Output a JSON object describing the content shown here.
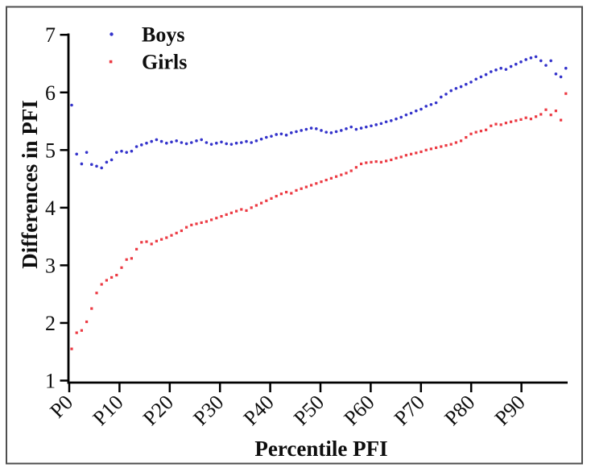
{
  "figure": {
    "background": "#ffffff",
    "border_color": "#4e4e4e"
  },
  "chart_data": {
    "type": "scatter",
    "title": "",
    "xlabel": "Percentile PFI",
    "ylabel": "Differences in PFI",
    "xlim": [
      0,
      100
    ],
    "ylim": [
      1,
      7
    ],
    "grid": false,
    "legend_position": "top-left-inside",
    "x_tick_labels": [
      "P0",
      "P10",
      "P20",
      "P30",
      "P40",
      "P50",
      "P60",
      "P70",
      "P80",
      "P90"
    ],
    "x_tick_values": [
      0,
      10,
      20,
      30,
      40,
      50,
      60,
      70,
      80,
      90
    ],
    "y_tick_labels": [
      "1",
      "2",
      "3",
      "4",
      "5",
      "6",
      "7"
    ],
    "y_tick_values": [
      1,
      2,
      3,
      4,
      5,
      6,
      7
    ],
    "percentiles": [
      0,
      1,
      2,
      3,
      4,
      5,
      6,
      7,
      8,
      9,
      10,
      11,
      12,
      13,
      14,
      15,
      16,
      17,
      18,
      19,
      20,
      21,
      22,
      23,
      24,
      25,
      26,
      27,
      28,
      29,
      30,
      31,
      32,
      33,
      34,
      35,
      36,
      37,
      38,
      39,
      40,
      41,
      42,
      43,
      44,
      45,
      46,
      47,
      48,
      49,
      50,
      51,
      52,
      53,
      54,
      55,
      56,
      57,
      58,
      59,
      60,
      61,
      62,
      63,
      64,
      65,
      66,
      67,
      68,
      69,
      70,
      71,
      72,
      73,
      74,
      75,
      76,
      77,
      78,
      79,
      80,
      81,
      82,
      83,
      84,
      85,
      86,
      87,
      88,
      89,
      90,
      91,
      92,
      93,
      94,
      95,
      96,
      97,
      98,
      99
    ],
    "series": [
      {
        "name": "Boys",
        "color": "#3433cb",
        "marker": "circle",
        "values": [
          5.78,
          4.93,
          4.76,
          4.96,
          4.75,
          4.72,
          4.69,
          4.79,
          4.83,
          4.96,
          4.98,
          4.96,
          4.98,
          5.06,
          5.09,
          5.12,
          5.15,
          5.18,
          5.15,
          5.12,
          5.14,
          5.16,
          5.13,
          5.11,
          5.13,
          5.16,
          5.18,
          5.13,
          5.1,
          5.12,
          5.14,
          5.11,
          5.1,
          5.12,
          5.13,
          5.15,
          5.13,
          5.16,
          5.19,
          5.22,
          5.24,
          5.27,
          5.28,
          5.26,
          5.3,
          5.32,
          5.34,
          5.36,
          5.38,
          5.37,
          5.34,
          5.31,
          5.3,
          5.32,
          5.34,
          5.37,
          5.4,
          5.36,
          5.38,
          5.4,
          5.42,
          5.44,
          5.46,
          5.49,
          5.51,
          5.54,
          5.57,
          5.61,
          5.64,
          5.68,
          5.71,
          5.76,
          5.79,
          5.82,
          5.92,
          5.97,
          6.03,
          6.07,
          6.1,
          6.14,
          6.18,
          6.23,
          6.27,
          6.31,
          6.36,
          6.39,
          6.42,
          6.4,
          6.45,
          6.49,
          6.53,
          6.57,
          6.6,
          6.62,
          6.55,
          6.47,
          6.55,
          6.32,
          6.27,
          6.42
        ]
      },
      {
        "name": "Girls",
        "color": "#ec3a43",
        "marker": "square",
        "values": [
          1.55,
          1.83,
          1.87,
          2.02,
          2.25,
          2.52,
          2.67,
          2.74,
          2.79,
          2.83,
          2.96,
          3.1,
          3.12,
          3.28,
          3.4,
          3.41,
          3.37,
          3.42,
          3.45,
          3.48,
          3.52,
          3.56,
          3.6,
          3.66,
          3.7,
          3.72,
          3.74,
          3.76,
          3.79,
          3.82,
          3.85,
          3.88,
          3.91,
          3.94,
          3.97,
          3.95,
          4.0,
          4.04,
          4.08,
          4.12,
          4.16,
          4.2,
          4.24,
          4.27,
          4.25,
          4.3,
          4.33,
          4.36,
          4.39,
          4.42,
          4.45,
          4.48,
          4.51,
          4.54,
          4.57,
          4.6,
          4.64,
          4.7,
          4.76,
          4.78,
          4.79,
          4.8,
          4.79,
          4.81,
          4.83,
          4.86,
          4.88,
          4.91,
          4.93,
          4.95,
          4.97,
          5.0,
          5.02,
          5.04,
          5.06,
          5.08,
          5.1,
          5.13,
          5.16,
          5.22,
          5.28,
          5.31,
          5.33,
          5.35,
          5.42,
          5.45,
          5.44,
          5.47,
          5.49,
          5.51,
          5.53,
          5.56,
          5.54,
          5.58,
          5.62,
          5.7,
          5.61,
          5.68,
          5.52,
          5.98
        ]
      }
    ]
  }
}
